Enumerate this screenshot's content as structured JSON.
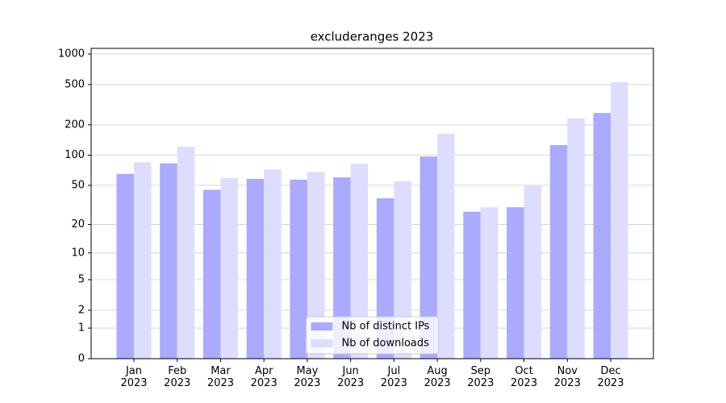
{
  "chart_data": {
    "type": "bar",
    "title": "excluderanges 2023",
    "categories": [
      "Jan\n2023",
      "Feb\n2023",
      "Mar\n2023",
      "Apr\n2023",
      "May\n2023",
      "Jun\n2023",
      "Jul\n2023",
      "Aug\n2023",
      "Sep\n2023",
      "Oct\n2023",
      "Nov\n2023",
      "Dec\n2023"
    ],
    "series": [
      {
        "name": "Nb of distinct IPs",
        "color": "#aaaaff",
        "values": [
          65,
          83,
          45,
          58,
          57,
          60,
          37,
          97,
          27,
          30,
          126,
          262
        ]
      },
      {
        "name": "Nb of downloads",
        "color": "#ddddff",
        "values": [
          85,
          121,
          59,
          72,
          68,
          82,
          55,
          163,
          30,
          50,
          231,
          526
        ]
      }
    ],
    "yscale": "log1p",
    "ylim": [
      0,
      1137
    ],
    "yticks": [
      0,
      1,
      2,
      5,
      10,
      20,
      50,
      100,
      200,
      500,
      1000
    ],
    "grid": true,
    "legend": "lower center"
  }
}
